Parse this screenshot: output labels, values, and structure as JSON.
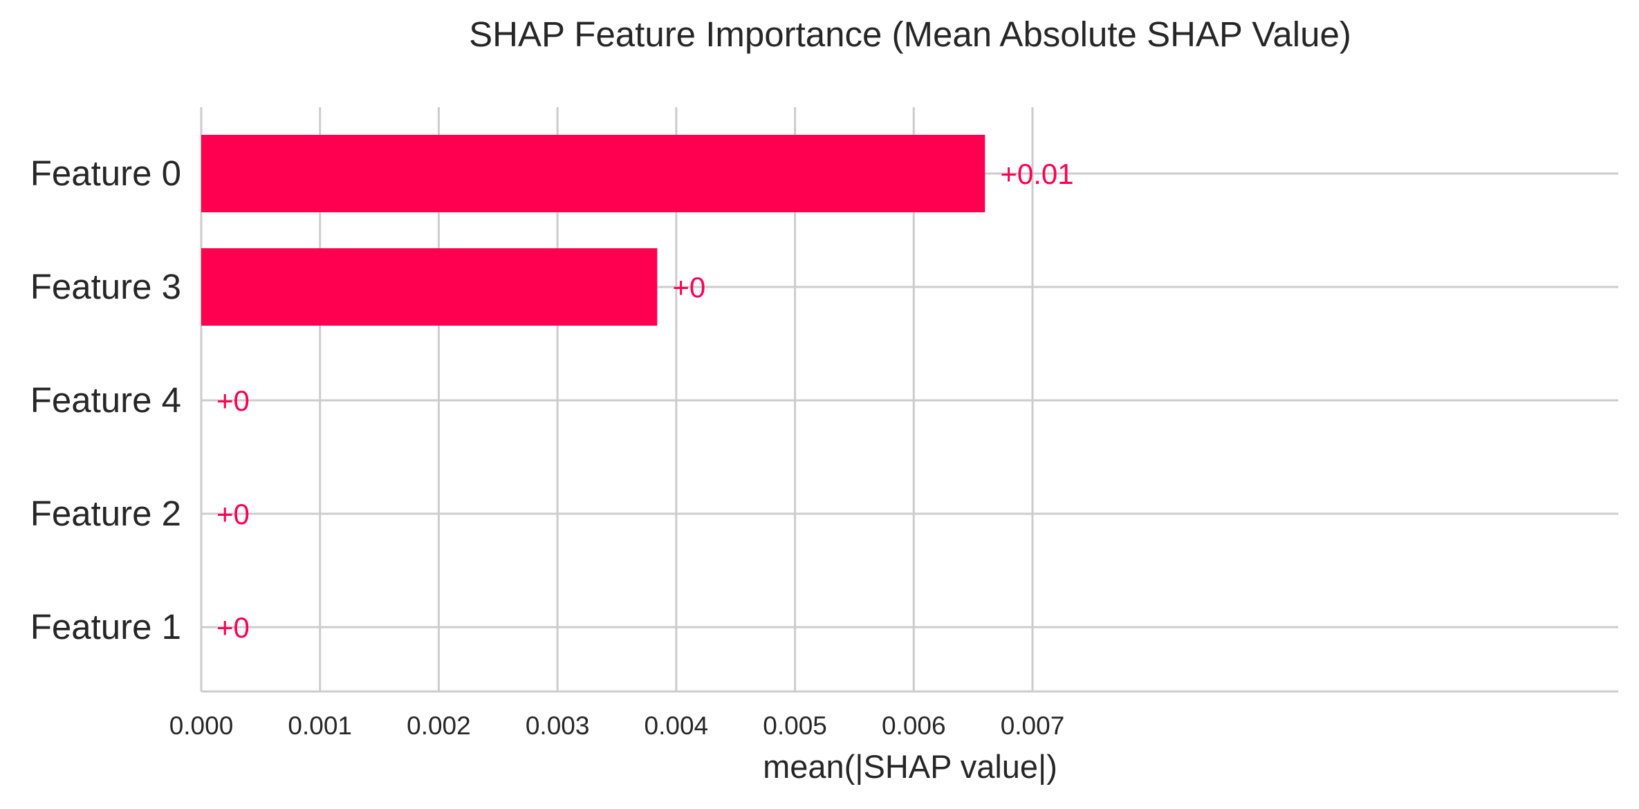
{
  "chart_data": {
    "type": "bar",
    "orientation": "horizontal",
    "title": "SHAP Feature Importance (Mean Absolute SHAP Value)",
    "xlabel": "mean(|SHAP value|)",
    "ylabel": "",
    "categories": [
      "Feature 0",
      "Feature 3",
      "Feature 4",
      "Feature 2",
      "Feature 1"
    ],
    "values": [
      0.0066,
      0.00384,
      0.0,
      0.0,
      0.0
    ],
    "value_labels": [
      "+0.01",
      "+0",
      "+0",
      "+0",
      "+0"
    ],
    "xlim": [
      0,
      0.0073
    ],
    "xticks": [
      0.0,
      0.001,
      0.002,
      0.003,
      0.004,
      0.005,
      0.006,
      0.007
    ],
    "xtick_labels": [
      "0.000",
      "0.001",
      "0.002",
      "0.003",
      "0.004",
      "0.005",
      "0.006",
      "0.007"
    ],
    "grid": true,
    "colors": {
      "bar": "#ff0051",
      "label": "#ff0051",
      "grid": "#cccccc",
      "text": "#262626",
      "axis": "#cccccc"
    }
  }
}
